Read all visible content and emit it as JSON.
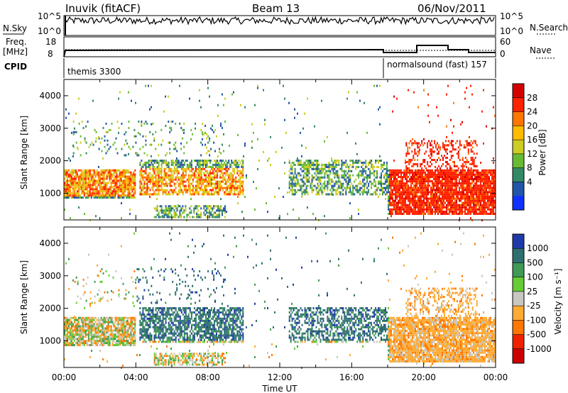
{
  "header": {
    "station": "Inuvik (fitACF)",
    "beam": "Beam 13",
    "date": "06/Nov/2011"
  },
  "left_labels": {
    "nsky": "N.Sky",
    "nsky_ticks": [
      "10^5",
      "10^0"
    ],
    "freq": "Freq.",
    "freq_unit": "[MHz]",
    "freq_ticks": [
      "18",
      "8"
    ],
    "cpid": "CPID"
  },
  "right_labels": {
    "nsearch": "N.Search",
    "nsearch_ticks": [
      "10^5",
      "10^0"
    ],
    "nave": "Nave",
    "nave_ticks": [
      "60",
      "0"
    ]
  },
  "cpid_segments": [
    {
      "label": "themis 3300",
      "start_hour": 0
    },
    {
      "label": "normalsound (fast)  157",
      "start_hour": 18
    }
  ],
  "chart_data": [
    {
      "type": "heatmap",
      "title": "Power",
      "ylabel": "Slant Range [km]",
      "yticks": [
        "4000",
        "3000",
        "2000",
        "1000"
      ],
      "xticks": [],
      "xlim": [
        0,
        24
      ],
      "ylim": [
        180,
        4500
      ],
      "colorbar_label": "Power [dB]",
      "colorbar_ticks": [
        "28",
        "24",
        "20",
        "16",
        "12",
        "8",
        "4"
      ],
      "colorbar_colors": [
        "#d40000",
        "#ff2200",
        "#ff7700",
        "#ffbb00",
        "#cccc22",
        "#66bb33",
        "#338866",
        "#2255aa",
        "#1030ff"
      ]
    },
    {
      "type": "heatmap",
      "title": "Velocity",
      "ylabel": "Slant Range [km]",
      "yticks": [
        "4000",
        "3000",
        "2000",
        "1000"
      ],
      "xticks": [
        "00:00",
        "04:00",
        "08:00",
        "12:00",
        "16:00",
        "20:00",
        "00:00"
      ],
      "xlabel": "Time UT",
      "xlim": [
        0,
        24
      ],
      "ylim": [
        180,
        4500
      ],
      "colorbar_label": "Velocity [m s⁻¹]",
      "colorbar_ticks": [
        "1000",
        "500",
        "100",
        "25",
        "-25",
        "-100",
        "-500",
        "-1000"
      ],
      "colorbar_colors": [
        "#1f3aa8",
        "#2f6f70",
        "#3f9a55",
        "#66cc33",
        "#c8c8c0",
        "#ffaa33",
        "#ff7700",
        "#ee2200",
        "#cc0000"
      ]
    }
  ]
}
